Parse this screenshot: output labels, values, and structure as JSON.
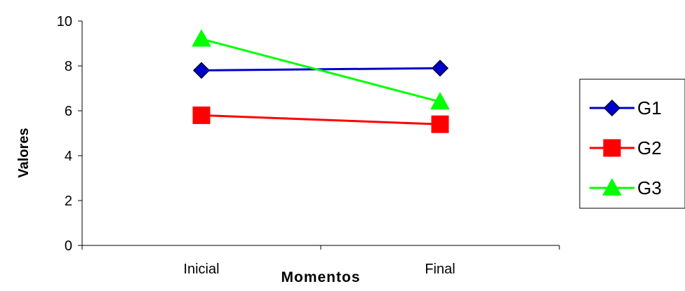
{
  "chart_data": {
    "type": "line",
    "categories": [
      "Inicial",
      "Final"
    ],
    "series": [
      {
        "name": "G1",
        "values": [
          7.8,
          7.9
        ],
        "color": "#0000cc",
        "marker": "diamond"
      },
      {
        "name": "G2",
        "values": [
          5.8,
          5.4
        ],
        "color": "#ff0000",
        "marker": "square"
      },
      {
        "name": "G3",
        "values": [
          9.2,
          6.4
        ],
        "color": "#00ff00",
        "marker": "triangle"
      }
    ],
    "xlabel": "Momentos",
    "ylabel": "Valores",
    "ylim": [
      0,
      10
    ],
    "yticks": [
      0,
      2,
      4,
      6,
      8,
      10
    ],
    "grid": false,
    "legend_position": "right"
  }
}
